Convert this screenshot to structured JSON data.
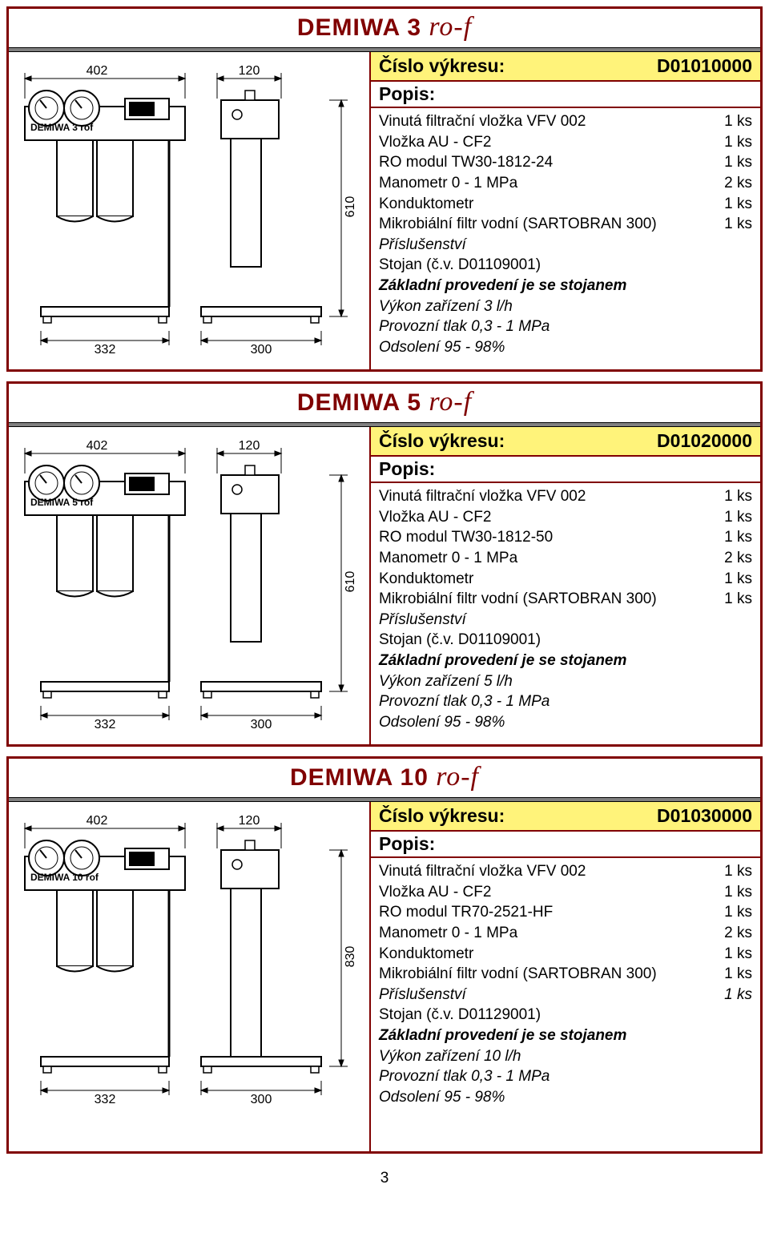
{
  "page_number": "3",
  "sections": [
    {
      "title_main": "DEMIWA 3",
      "title_script": "ro-f",
      "drawing_label": "Číslo výkresu:",
      "drawing_no": "D01010000",
      "popis_label": "Popis:",
      "items": [
        {
          "name": "Vinutá filtrační vložka VFV 002",
          "qty": "1 ks"
        },
        {
          "name": "Vložka AU - CF2",
          "qty": "1 ks"
        },
        {
          "name": "RO  modul TW30-1812-24",
          "qty": "1 ks"
        },
        {
          "name": "Manometr 0 - 1 MPa",
          "qty": "2 ks"
        },
        {
          "name": "Konduktometr",
          "qty": "1 ks"
        },
        {
          "name": "Mikrobiální filtr vodní (SARTOBRAN 300)",
          "qty": "1 ks"
        }
      ],
      "accessory_header": "Příslušenství",
      "accessory_line": "Stojan (č.v. D01109001)",
      "bold_line": "Základní provedení je se stojanem",
      "perf_line": "Výkon zařízení  3 l/h",
      "press_line": "Provozní tlak 0,3 - 1 MPa",
      "desal_line": "Odsolení 95 - 98%",
      "diagram": {
        "top_dim_left": "402",
        "top_dim_right": "120",
        "bot_dim_left": "332",
        "bot_dim_right": "300",
        "side_dim": "610",
        "device_label": "DEMIWA 3 rof"
      }
    },
    {
      "title_main": "DEMIWA 5",
      "title_script": "ro-f",
      "drawing_label": "Číslo výkresu:",
      "drawing_no": "D01020000",
      "popis_label": "Popis:",
      "items": [
        {
          "name": "Vinutá filtrační vložka VFV 002",
          "qty": "1 ks"
        },
        {
          "name": "Vložka AU - CF2",
          "qty": "1 ks"
        },
        {
          "name": "RO  modul TW30-1812-50",
          "qty": "1 ks"
        },
        {
          "name": "Manometr 0 - 1 MPa",
          "qty": "2 ks"
        },
        {
          "name": "Konduktometr",
          "qty": "1 ks"
        },
        {
          "name": "Mikrobiální filtr vodní (SARTOBRAN 300)",
          "qty": "1 ks"
        }
      ],
      "accessory_header": "Příslušenství",
      "accessory_line": "Stojan (č.v. D01109001)",
      "bold_line": "Základní provedení je se stojanem",
      "perf_line": "Výkon zařízení  5 l/h",
      "press_line": "Provozní tlak 0,3 - 1 MPa",
      "desal_line": "Odsolení 95 - 98%",
      "diagram": {
        "top_dim_left": "402",
        "top_dim_right": "120",
        "bot_dim_left": "332",
        "bot_dim_right": "300",
        "side_dim": "610",
        "device_label": "DEMIWA 5 rof"
      }
    },
    {
      "title_main": "DEMIWA 10",
      "title_script": "ro-f",
      "drawing_label": "Číslo výkresu:",
      "drawing_no": "D01030000",
      "popis_label": "Popis:",
      "items": [
        {
          "name": "Vinutá filtrační vložka VFV 002",
          "qty": "1 ks"
        },
        {
          "name": "Vložka AU - CF2",
          "qty": "1 ks"
        },
        {
          "name": "RO  modul TR70-2521-HF",
          "qty": "1 ks"
        },
        {
          "name": "Manometr 0 - 1 MPa",
          "qty": "2 ks"
        },
        {
          "name": "Konduktometr",
          "qty": "1 ks"
        },
        {
          "name": "Mikrobiální filtr vodní (SARTOBRAN 300)",
          "qty": "1 ks"
        },
        {
          "name": "Příslušenství",
          "qty": "1 ks",
          "italic": true
        }
      ],
      "accessory_header": "",
      "accessory_line": "Stojan (č.v. D01129001)",
      "bold_line": "Základní provedení je se stojanem",
      "perf_line": "Výkon zařízení  10 l/h",
      "press_line": "Provozní tlak 0,3 - 1 MPa",
      "desal_line": "Odsolení 95 - 98%",
      "diagram": {
        "top_dim_left": "402",
        "top_dim_right": "120",
        "bot_dim_left": "332",
        "bot_dim_right": "300",
        "side_dim": "830",
        "device_label": "DEMIWA 10 rof"
      }
    }
  ]
}
